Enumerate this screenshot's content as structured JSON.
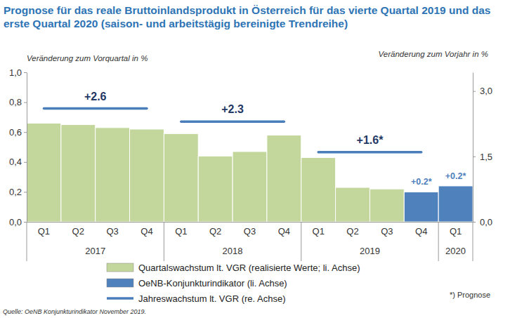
{
  "chart_data": {
    "type": "bar",
    "title": "Prognose für das reale Bruttoinlandsprodukt in Österreich für das vierte Quartal 2019 und das erste Quartal 2020 (saison- und arbeitstägig bereinigte Trendreihe)",
    "y_label": "Veränderung zum Vorquartal in %",
    "y2_label": "Veränderung zum Vorjahr in %",
    "categories": [
      "Q1",
      "Q2",
      "Q3",
      "Q4",
      "Q1",
      "Q2",
      "Q3",
      "Q4",
      "Q1",
      "Q2",
      "Q3",
      "Q4",
      "Q1"
    ],
    "category_groups": [
      "2017",
      "2017",
      "2017",
      "2017",
      "2018",
      "2018",
      "2018",
      "2018",
      "2019",
      "2019",
      "2019",
      "2019",
      "2020"
    ],
    "ylim": [
      0,
      1
    ],
    "yticks": [
      {
        "value": 0,
        "label": "0,0"
      },
      {
        "value": 0.2,
        "label": "0,2"
      },
      {
        "value": 0.4,
        "label": "0,4"
      },
      {
        "value": 0.6,
        "label": "0,6"
      },
      {
        "value": 0.8,
        "label": "0,8"
      },
      {
        "value": 1,
        "label": "1,0"
      }
    ],
    "y2lim": [
      0,
      3.43
    ],
    "y2ticks": [
      {
        "value": 0,
        "label": "0,0"
      },
      {
        "value": 1.5,
        "label": "1,5"
      },
      {
        "value": 3,
        "label": "3,0"
      }
    ],
    "grid": false,
    "legend": "bottom",
    "series": [
      {
        "name": "Quartalswachstum lt. VGR (realisierte Werte; li. Achse)",
        "type": "bar",
        "color": "#c3d69b",
        "values": [
          0.66,
          0.65,
          0.63,
          0.62,
          0.59,
          0.44,
          0.47,
          0.58,
          0.43,
          0.23,
          0.22,
          null,
          null
        ]
      },
      {
        "name": "OeNB-Konjunkturindikator (li. Achse)",
        "type": "bar",
        "color": "#4f81bd",
        "values": [
          null,
          null,
          null,
          null,
          null,
          null,
          null,
          null,
          null,
          null,
          null,
          0.2,
          0.24
        ],
        "value_labels": [
          null,
          null,
          null,
          null,
          null,
          null,
          null,
          null,
          null,
          null,
          null,
          "+0.2*",
          "+0.2*"
        ],
        "data_labels": true
      },
      {
        "name": "Jahreswachstum lt. VGR (re. Achse)",
        "type": "line",
        "axis": "y2",
        "color": "#4a7ebb",
        "x": [
          "2017",
          "2018",
          "2019"
        ],
        "values": [
          2.6,
          2.3,
          1.6
        ],
        "value_labels": [
          "+2.6",
          "+2.3",
          "+1.6*"
        ],
        "data_labels": true
      }
    ],
    "footnote": "*) Prognose",
    "source": "Quelle: OeNB Konjunkturindikator November 2019."
  }
}
